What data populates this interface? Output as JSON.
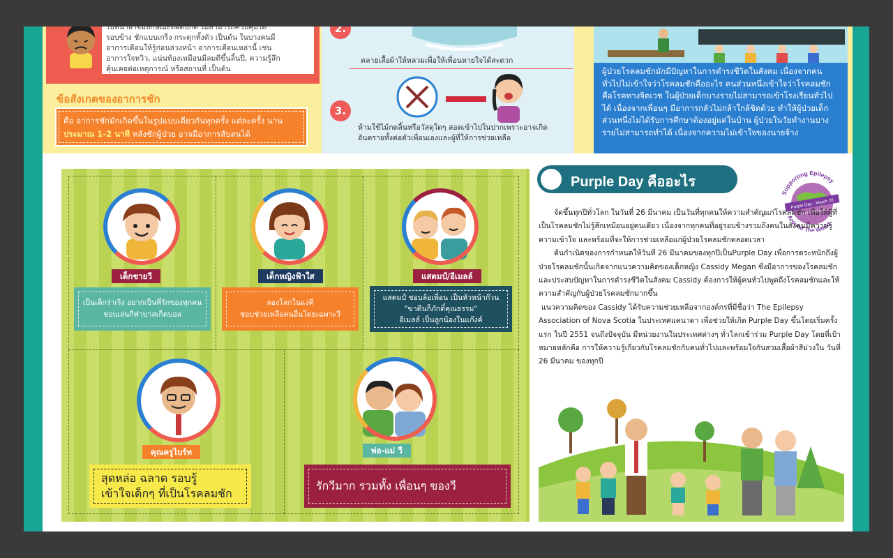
{
  "top": {
    "symptom_text": [
      "ใบหน้าอาจมีลักษณะที่ผิดปกติ ไม่สามารถควบคุมได้",
      "รอบข้าง ชักแบบเกร็ง กระตุกทั้งตัว เป็นต้น ในบางคนมี",
      "อาการเตือนให้รู้ก่อนล่วงหน้า อาการเตือนเหล่านี้ เช่น",
      "อาการใจหวิว, แน่นท้องเหมือนมีลมตีขึ้นลิ้นปี่, ความรู้สึก",
      "คุ้นเคยต่อเหตุการณ์ หรือสถานที่ เป็นต้น"
    ],
    "observation_title": "ข้อสังเกตของอาการชัก",
    "observation_pre": "คือ อาการชักมักเกิดขึ้นในรูปแบบเดียวกันทุกครั้ง แต่ละครั้ง นาน",
    "observation_highlight": "ประมาณ 1-2 นาที",
    "observation_post": " หลังชักผู้ป่วย อาจมีอาการสับสนได้",
    "steps": [
      {
        "num": "2.",
        "text": "คลายเสื้อผ้าให้หลวมเพื่อให้เพื่อนหายใจได้สะดวก"
      },
      {
        "num": "3.",
        "text_line1": "ห้ามใช้ไม้กดลิ้นหรือวัสดุใดๆ สอดเข้าไปในปากเพราะอาจเกิด",
        "text_line2": "อันตรายทั้งต่อตัวเพื่อนเองและผู้ที่ให้การช่วยเหลือ"
      }
    ],
    "social_text": "ผู้ป่วยโรคลมชักมักมีปัญหาในการดำรงชีวิตในสังคม เนื่องจากคนทั่วไปไม่เข้าใจว่าโรคลมชักคืออะไร คนส่วนหนึ่งเข้าใจว่าโรคลมชักคือโรคทางจิตเวช ในผู้ป่วยเด็กบางรายไม่สามารถเข้าโรงเรียนทั่วไปได้ เนื่องจากเพื่อนๆ มีอาการกลัวไม่กล้าใกล้ชิดด้วย ทำให้ผู้ป่วยเด็กส่วนหนึ่งไม่ได้รับการศึกษาต้องอยู่แต่ในบ้าน ผู้ป่วยในวัยทำงานบางรายไม่สามารถทำได้ เนื่องจากความไม่เข้าใจของนายจ้าง"
  },
  "characters": [
    {
      "name": "เด็กชายวี",
      "desc": [
        "เป็นเด็กร่าเริง อยากเป็นที่รักของทุกคน",
        "ชอบเล่นกีฬาบาสเก็ตบอล"
      ]
    },
    {
      "name": "เด็กหญิงฟ้าใส",
      "desc": [
        "ลองโลกในแง่ดี",
        "ชอบช่วยเหลือคนอื่นโดยเฉพาะวี"
      ]
    },
    {
      "name": "แสตมป์/อีเมลล์",
      "desc": [
        "แสตมป์ ชอบล้อเพื่อน เป็นหัวหน้าก๊วน",
        "\"ขาดีนก็ภักดิ์คุณธรรม\"",
        "อีเมลล์ เป็นลูกน้องในแก๊งค์"
      ]
    },
    {
      "name": "คุณครูไบร์ท",
      "desc": [
        "สุดหล่อ ฉลาด รอบรู้",
        "เข้าใจเด็กๆ ที่เป็นโรคลมชัก"
      ]
    },
    {
      "name": "พ่อ-แม่ วี",
      "desc": [
        "รักวีมาก รวมทั้ง เพื่อนๆ ของวี"
      ]
    }
  ],
  "purple_day": {
    "title": "Purple Day คืออะไร",
    "logo_top": "Supporting Epilepsy",
    "logo_mid": "Purple Day - March 26",
    "logo_url": "www.purpleday.org",
    "logo_bottom": "Around The World",
    "p1": "จัดขึ้นทุกปีทั่วโลก ในวันที่ 26 มีนาคม เป็นวันที่ทุกคนให้ความสำคัญแก่โรคลมชัก เพื่อให้ผู้ที่เป็นโรคลมชักไม่รู้สึกเหมือนอยู่คนเดียว เนื่องจากทุกคนที่อยู่รอบข้างรวมถึงคนในสังคมมีความรู้ความเข้าใจ และพร้อมที่จะให้การช่วยเหลือแก่ผู้ป่วยโรคลมชักตลอดเวลา",
    "p2": "ต้นกำเนิดของการกำหนดให้วันที่ 26 มีนาคมของทุกปีเป็นPurple Day เพื่อการตระหนักถึงผู้ป่วยโรคลมชักนั้นเกิดจากแนวความคิดของเด็กหญิง Cassidy Megan ซึ่งมีอาการของโรคลมชัก และประสบปัญหาในการดำรงชีวิตในสังคม Cassidy ต้องการให้ผู้คนทั่วไปพูดถึงโรคลมชักและให้ความสำคัญกับผู้ป่วยโรคลมชักมากขึ้น",
    "p3": "แนวความคิดของ Cassidy ได้รับความช่วยเหลือจากองค์กรที่มีชื่อว่า The Epilepsy Association of Nova Scotia ในประเทศแคนาดา เพื่อช่วยให้เกิด Purple Day ขึ้นโดยเริ่มครั้งแรก ในปี 2551 จนถึงปัจจุบัน มีหน่วยงานในประเทศต่างๆ ทั่วโลกเข้าร่วม Purple Day โดยที่เป้าหมายหลักคือ การให้ความรู้เกี่ยวกับโรคลมชักกับคนทั่วไปและพร้อมใจกันสวมเสื้อผ้าสีม่วงใน วันที่ 26 มีนาคม ของทุกปี"
  }
}
